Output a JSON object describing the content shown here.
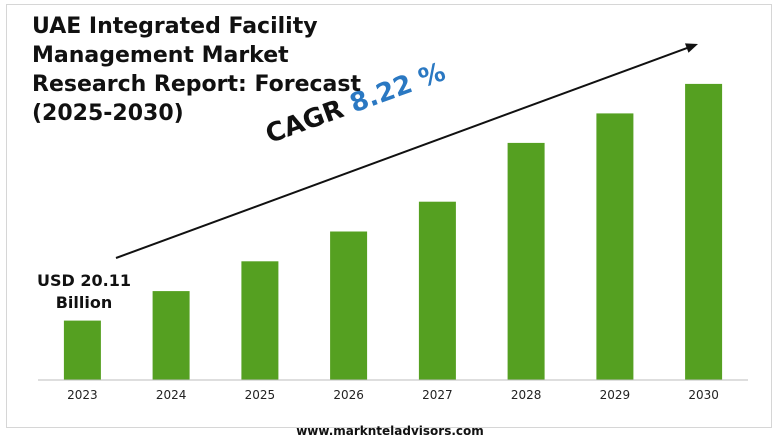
{
  "title_lines": [
    "UAE Integrated Facility",
    "Management Market",
    "Research Report: Forecast",
    "(2025-2030)"
  ],
  "first_value_label": [
    "USD 20.11",
    "Billion"
  ],
  "cagr": {
    "label": "CAGR",
    "value": "8.22 %"
  },
  "footer": "www.marknteladvisors.com",
  "colors": {
    "bar": "#55a021",
    "axis": "#bdbdbd",
    "arrow": "#111111",
    "cagr_value": "#2a78c2"
  },
  "chart_data": {
    "type": "bar",
    "categories": [
      "2023",
      "2024",
      "2025",
      "2026",
      "2027",
      "2028",
      "2029",
      "2030"
    ],
    "values": [
      20.11,
      30.1,
      40.2,
      50.3,
      60.4,
      80.3,
      90.3,
      100.3
    ],
    "title": "UAE Integrated Facility Management Market Research Report: Forecast (2025-2030)",
    "xlabel": "",
    "ylabel": "",
    "ylim": [
      0,
      105
    ],
    "grid": false,
    "legend": "none",
    "annotations": [
      "USD 20.11 Billion",
      "CAGR 8.22 %"
    ]
  }
}
